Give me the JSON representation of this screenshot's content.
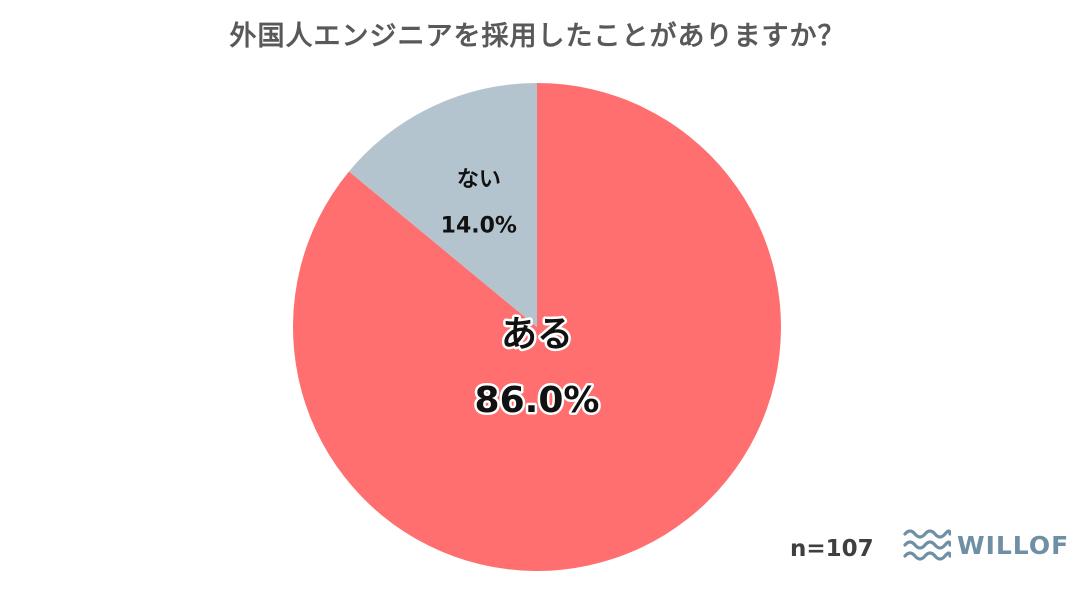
{
  "title": "外国人エンジニアを採用したことがありますか？",
  "chart_data": {
    "type": "pie",
    "title": "外国人エンジニアを採用したことがありますか？",
    "slices": [
      {
        "label": "ある",
        "value": 86.0,
        "display": "86.0%",
        "color": "#FF6F6F"
      },
      {
        "label": "ない",
        "value": 14.0,
        "display": "14.0%",
        "color": "#B3C4CF"
      }
    ],
    "start": "top",
    "direction": "clockwise",
    "legend": "none"
  },
  "footer": {
    "sample_size": "n=107",
    "logo_text": "WILLOF",
    "logo_color": "#6F8FA5"
  }
}
